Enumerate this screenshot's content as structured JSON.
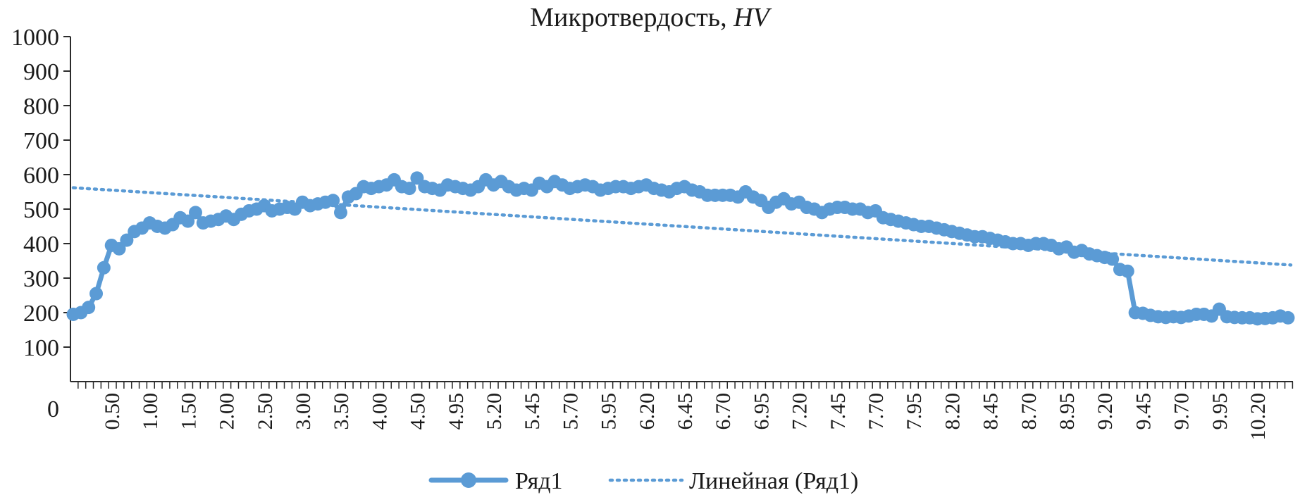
{
  "chart_data": {
    "type": "line",
    "title_text": "Микротвердость, ",
    "title_italic": "HV",
    "xlabel": "",
    "ylabel": "",
    "ylim": [
      0,
      1000
    ],
    "yticks": [
      0,
      100,
      200,
      300,
      400,
      500,
      600,
      700,
      800,
      900,
      1000
    ],
    "x_tick_labels": [
      "0.50",
      "1.00",
      "1.50",
      "2.00",
      "2.50",
      "3.00",
      "3.50",
      "4.00",
      "4.50",
      "4.95",
      "5.20",
      "5.45",
      "5.70",
      "5.95",
      "6.20",
      "6.45",
      "6.70",
      "6.95",
      "7.20",
      "7.45",
      "7.70",
      "7.95",
      "8.20",
      "8.45",
      "8.70",
      "8.95",
      "9.20",
      "9.45",
      "9.70",
      "9.95",
      "10.20"
    ],
    "grid": false,
    "legend_position": "bottom",
    "series": [
      {
        "name": "Ряд1",
        "color": "#5b9bd5",
        "style": "line-markers",
        "values": [
          195,
          200,
          215,
          255,
          330,
          395,
          385,
          410,
          435,
          445,
          460,
          450,
          445,
          455,
          475,
          465,
          490,
          460,
          465,
          470,
          480,
          470,
          485,
          495,
          500,
          510,
          495,
          500,
          505,
          500,
          520,
          510,
          515,
          520,
          525,
          490,
          535,
          545,
          565,
          560,
          565,
          570,
          585,
          565,
          560,
          590,
          565,
          560,
          555,
          570,
          565,
          560,
          555,
          565,
          585,
          570,
          580,
          565,
          555,
          560,
          555,
          575,
          565,
          580,
          570,
          560,
          565,
          570,
          565,
          555,
          560,
          565,
          565,
          560,
          565,
          570,
          560,
          555,
          550,
          560,
          565,
          555,
          550,
          540,
          540,
          540,
          540,
          535,
          550,
          535,
          525,
          505,
          520,
          530,
          515,
          520,
          505,
          500,
          490,
          500,
          505,
          505,
          500,
          500,
          490,
          495,
          475,
          470,
          465,
          460,
          455,
          450,
          450,
          445,
          440,
          435,
          430,
          425,
          420,
          420,
          415,
          410,
          405,
          400,
          400,
          395,
          400,
          400,
          395,
          385,
          390,
          375,
          380,
          370,
          365,
          360,
          355,
          325,
          320,
          200,
          198,
          192,
          188,
          186,
          188,
          186,
          190,
          195,
          195,
          190,
          210,
          188,
          186,
          185,
          185,
          182,
          183,
          185,
          190,
          185
        ]
      },
      {
        "name": "Линейная (Ряд1)",
        "color": "#5b9bd5",
        "style": "dotted-trendline",
        "start_value": 562,
        "end_value": 338
      }
    ]
  }
}
